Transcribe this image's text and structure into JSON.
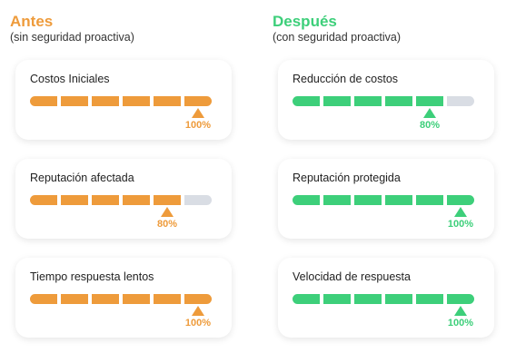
{
  "colors": {
    "orange": "#EE9B3B",
    "green": "#3DCF7A",
    "track": "#D9DDE4"
  },
  "left": {
    "title": "Antes",
    "subtitle": "(sin seguridad proactiva)",
    "cards": [
      {
        "label": "Costos Iniciales",
        "percent": "100%",
        "filled_segments": 6
      },
      {
        "label": "Reputación afectada",
        "percent": "80%",
        "filled_segments": 5
      },
      {
        "label": "Tiempo respuesta lentos",
        "percent": "100%",
        "filled_segments": 6
      }
    ]
  },
  "right": {
    "title": "Después",
    "subtitle": "(con seguridad proactiva)",
    "cards": [
      {
        "label": "Reducción de costos",
        "percent": "80%",
        "filled_segments": 5
      },
      {
        "label": "Reputación protegida",
        "percent": "100%",
        "filled_segments": 6
      },
      {
        "label": "Velocidad de respuesta",
        "percent": "100%",
        "filled_segments": 6
      }
    ]
  }
}
